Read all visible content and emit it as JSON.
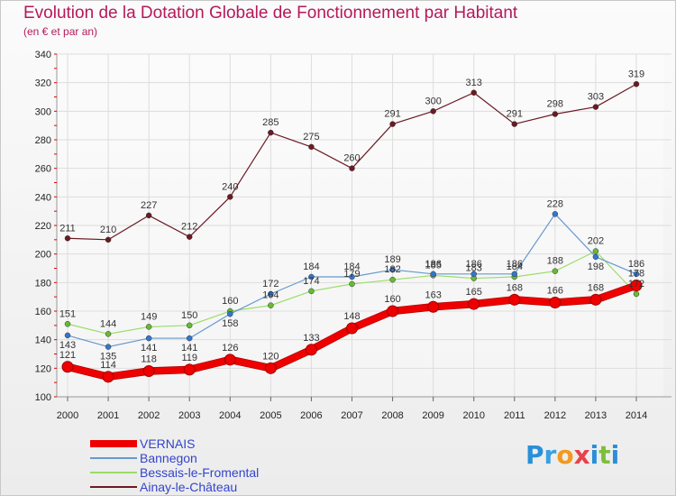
{
  "header": {
    "title": "Evolution de la Dotation Globale de Fonctionnement par Habitant",
    "subtitle": "(en € et par an)"
  },
  "logo": {
    "letters": [
      "P",
      "r",
      "o",
      "x",
      "i",
      "t",
      "i"
    ],
    "colors": [
      "#2a8fd8",
      "#3aa0e0",
      "#f29a1e",
      "#e8424a",
      "#2a8fd8",
      "#7cbf3a",
      "#2a8fd8"
    ]
  },
  "colors": {
    "title": "#b5195b",
    "axis_labels": "#222222",
    "grid": "#dddddd",
    "axis_red_ticks": "#dd0000"
  },
  "chart_data": {
    "type": "line",
    "title": "Evolution de la Dotation Globale de Fonctionnement par Habitant",
    "subtitle": "(en € et par an)",
    "x": [
      "2000",
      "2001",
      "2002",
      "2003",
      "2004",
      "2005",
      "2006",
      "2007",
      "2008",
      "2009",
      "2010",
      "2011",
      "2012",
      "2013",
      "2014"
    ],
    "ylim": [
      100,
      340
    ],
    "yticks": [
      "100",
      "120",
      "140",
      "160",
      "180",
      "200",
      "220",
      "240",
      "260",
      "280",
      "300",
      "320",
      "340"
    ],
    "grid": true,
    "legend_position": "bottom-left",
    "series": [
      {
        "name": "Ainay-le-Château",
        "color": "#6b1a24",
        "marker": "#6b1a24",
        "width": 1.2,
        "values": [
          211,
          210,
          227,
          212,
          240,
          285,
          275,
          260,
          291,
          300,
          313,
          291,
          298,
          303,
          319
        ],
        "labels": [
          "211",
          "210",
          "227",
          "212",
          "240",
          "285",
          "275",
          "260",
          "291",
          "300",
          "313",
          "291",
          "298",
          "303",
          "319"
        ],
        "label_pos": "above"
      },
      {
        "name": "Bessais-le-Fromental",
        "color": "#99dd66",
        "marker": "#66bb33",
        "width": 1.2,
        "values": [
          151,
          144,
          149,
          150,
          160,
          164,
          174,
          179,
          182,
          185,
          183,
          184,
          188,
          202,
          172
        ],
        "labels": [
          "151",
          "144",
          "149",
          "150",
          "160",
          "164",
          "174",
          "179",
          "182",
          "185",
          "183",
          "184",
          "188",
          "202",
          "172"
        ],
        "label_pos": "above"
      },
      {
        "name": "Bannegon",
        "color": "#6699cc",
        "marker": "#3377cc",
        "width": 1.2,
        "values": [
          143,
          135,
          141,
          141,
          158,
          172,
          184,
          184,
          189,
          186,
          186,
          186,
          228,
          198,
          186
        ],
        "labels": [
          "143",
          "135",
          "141",
          "141",
          "158",
          "172",
          "184",
          "184",
          "189",
          "186",
          "186",
          "186",
          "228",
          "198",
          "186"
        ],
        "label_pos": "mixed"
      },
      {
        "name": "VERNAIS",
        "color": "#ee0000",
        "marker": "#ee0000",
        "width": 7,
        "values": [
          121,
          114,
          118,
          119,
          126,
          120,
          133,
          148,
          160,
          163,
          165,
          168,
          166,
          168,
          178
        ],
        "labels": [
          "121",
          "114",
          "118",
          "119",
          "126",
          "120",
          "133",
          "148",
          "160",
          "163",
          "165",
          "168",
          "166",
          "168",
          "178"
        ],
        "label_pos": "above"
      }
    ],
    "legend": [
      {
        "name": "VERNAIS",
        "color": "#ee0000",
        "thick": true
      },
      {
        "name": "Bannegon",
        "color": "#6699cc",
        "thick": false
      },
      {
        "name": "Bessais-le-Fromental",
        "color": "#99dd66",
        "thick": false
      },
      {
        "name": "Ainay-le-Château",
        "color": "#6b1a24",
        "thick": false
      }
    ]
  }
}
